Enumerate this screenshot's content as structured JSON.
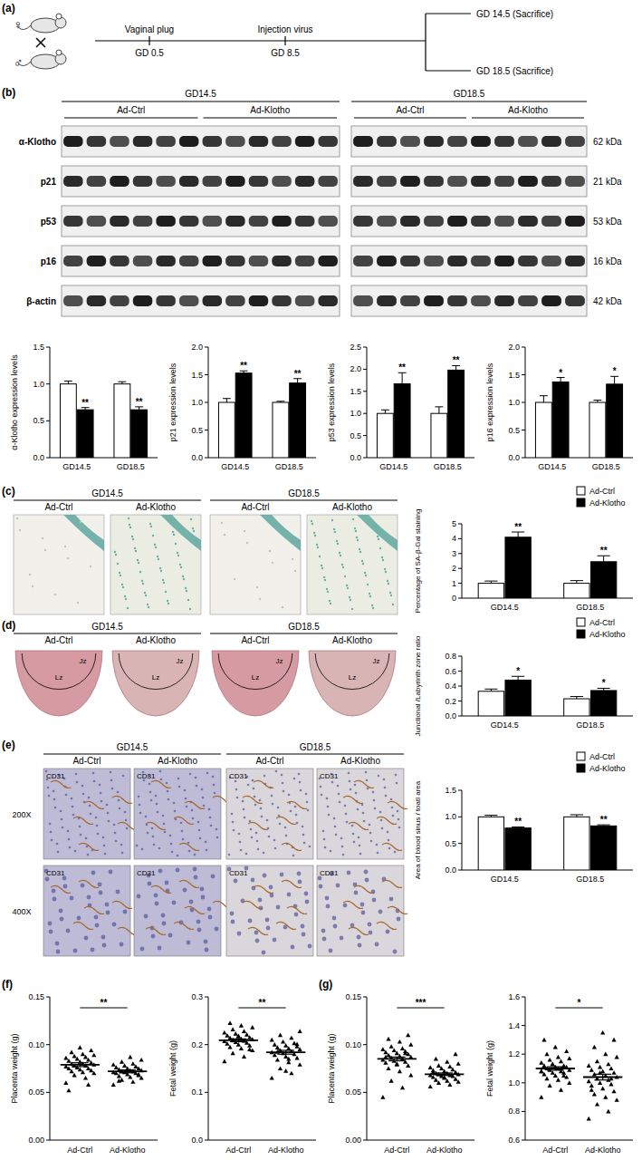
{
  "figure": {
    "panel_labels": [
      "(a)",
      "(b)",
      "(c)",
      "(d)",
      "(e)",
      "(f)",
      "(g)"
    ],
    "time_points": [
      "GD14.5",
      "GD18.5"
    ],
    "groups": [
      "Ad-Ctrl",
      "Ad-Klotho"
    ],
    "schematic": {
      "female": "♀",
      "male": "♂",
      "steps": [
        {
          "event": "Vaginal plug",
          "day": "GD 0.5"
        },
        {
          "event": "Injection virus",
          "day": "GD 8.5"
        }
      ],
      "endpoints": [
        "GD 14.5 (Sacrifice)",
        "GD 18.5 (Sacrifice)"
      ]
    },
    "blot": {
      "lanes_per_group": [
        6,
        5
      ],
      "rows": [
        {
          "protein": "α-Klotho",
          "size": "62 kDa"
        },
        {
          "protein": "p21",
          "size": "21 kDa"
        },
        {
          "protein": "p53",
          "size": "53 kDa"
        },
        {
          "protein": "p16",
          "size": "16 kDa"
        },
        {
          "protein": "β-actin",
          "size": "42 kDa"
        }
      ]
    },
    "zones": [
      "Jz",
      "Lz"
    ],
    "magnifications": [
      "200X",
      "400X"
    ],
    "stain": "CD31"
  },
  "chart_data": [
    {
      "type": "bar",
      "ylabel": "α-Klotho expression levels",
      "categories": [
        "GD14.5",
        "GD18.5"
      ],
      "series": [
        {
          "name": "Ad-Ctrl",
          "color": "#ffffff",
          "values": [
            1.0,
            1.0
          ],
          "errors": [
            0.04,
            0.03
          ]
        },
        {
          "name": "Ad-Klotho",
          "color": "#000000",
          "values": [
            0.65,
            0.65
          ],
          "errors": [
            0.03,
            0.04
          ],
          "significance": [
            "**",
            "**"
          ]
        }
      ],
      "ylim": [
        0,
        1.5
      ],
      "yticks": [
        {
          "value": 0,
          "label": "0.0"
        },
        0.5,
        {
          "value": 1,
          "label": "1.0"
        },
        1.5
      ]
    },
    {
      "type": "bar",
      "ylabel": "p21 expression levels",
      "categories": [
        "GD14.5",
        "GD18.5"
      ],
      "series": [
        {
          "name": "Ad-Ctrl",
          "color": "#ffffff",
          "values": [
            1.0,
            1.0
          ],
          "errors": [
            0.07,
            0.02
          ]
        },
        {
          "name": "Ad-Klotho",
          "color": "#000000",
          "values": [
            1.53,
            1.35
          ],
          "errors": [
            0.04,
            0.08
          ],
          "significance": [
            "**",
            "**"
          ]
        }
      ],
      "ylim": [
        0,
        2
      ],
      "yticks": [
        {
          "value": 0,
          "label": "0.0"
        },
        0.5,
        {
          "value": 1,
          "label": "1.0"
        },
        1.5,
        {
          "value": 2,
          "label": "2.0"
        }
      ]
    },
    {
      "type": "bar",
      "ylabel": "p53 expression levels",
      "categories": [
        "GD14.5",
        "GD18.5"
      ],
      "series": [
        {
          "name": "Ad-Ctrl",
          "color": "#ffffff",
          "values": [
            1.0,
            1.0
          ],
          "errors": [
            0.08,
            0.15
          ]
        },
        {
          "name": "Ad-Klotho",
          "color": "#000000",
          "values": [
            1.67,
            1.98
          ],
          "errors": [
            0.25,
            0.1
          ],
          "significance": [
            "**",
            "**"
          ]
        }
      ],
      "ylim": [
        0,
        2.5
      ],
      "yticks": [
        {
          "value": 0,
          "label": "0.0"
        },
        0.5,
        {
          "value": 1,
          "label": "1.0"
        },
        1.5,
        {
          "value": 2,
          "label": "2.0"
        },
        2.5
      ]
    },
    {
      "type": "bar",
      "ylabel": "p16 expression levels",
      "categories": [
        "GD14.5",
        "GD18.5"
      ],
      "series": [
        {
          "name": "Ad-Ctrl",
          "color": "#ffffff",
          "values": [
            1.0,
            1.0
          ],
          "errors": [
            0.12,
            0.04
          ]
        },
        {
          "name": "Ad-Klotho",
          "color": "#000000",
          "values": [
            1.37,
            1.33
          ],
          "errors": [
            0.08,
            0.14
          ],
          "significance": [
            "*",
            "*"
          ]
        }
      ],
      "ylim": [
        0,
        2
      ],
      "yticks": [
        {
          "value": 0,
          "label": "0.0"
        },
        0.5,
        {
          "value": 1,
          "label": "1.0"
        },
        1.5,
        {
          "value": 2,
          "label": "2.0"
        }
      ]
    },
    {
      "type": "bar",
      "ylabel": "Percentage of SA-β-Gal staining",
      "categories": [
        "GD14.5",
        "GD18.5"
      ],
      "legend": "top-right",
      "series": [
        {
          "name": "Ad-Ctrl",
          "color": "#ffffff",
          "values": [
            1.0,
            1.0
          ],
          "errors": [
            0.15,
            0.18
          ]
        },
        {
          "name": "Ad-Klotho",
          "color": "#000000",
          "values": [
            4.1,
            2.45
          ],
          "errors": [
            0.35,
            0.4
          ],
          "significance": [
            "**",
            "**"
          ]
        }
      ],
      "ylim": [
        0,
        5
      ],
      "yticks": [
        0,
        1,
        2,
        3,
        4,
        5
      ]
    },
    {
      "type": "bar",
      "ylabel": "Junctional /Labyrinth zone ratio",
      "categories": [
        "GD14.5",
        "GD18.5"
      ],
      "legend": "top-right",
      "series": [
        {
          "name": "Ad-Ctrl",
          "color": "#ffffff",
          "values": [
            0.33,
            0.23
          ],
          "errors": [
            0.03,
            0.03
          ]
        },
        {
          "name": "Ad-Klotho",
          "color": "#000000",
          "values": [
            0.48,
            0.34
          ],
          "errors": [
            0.05,
            0.03
          ],
          "significance": [
            "*",
            "*"
          ]
        }
      ],
      "ylim": [
        0,
        0.8
      ],
      "yticks": [
        {
          "value": 0,
          "label": "0.0"
        },
        0.2,
        0.4,
        0.6,
        0.8
      ]
    },
    {
      "type": "bar",
      "ylabel": "Area of blood sinus / toatl area",
      "categories": [
        "GD14.5",
        "GD18.5"
      ],
      "legend": "top-right",
      "series": [
        {
          "name": "Ad-Ctrl",
          "color": "#ffffff",
          "values": [
            1.0,
            1.0
          ],
          "errors": [
            0.03,
            0.04
          ]
        },
        {
          "name": "Ad-Klotho",
          "color": "#000000",
          "values": [
            0.79,
            0.83
          ],
          "errors": [
            0.02,
            0.02
          ],
          "significance": [
            "**",
            "**"
          ]
        }
      ],
      "ylim": [
        0,
        1.5
      ],
      "yticks": [
        {
          "value": 0,
          "label": "0.0"
        },
        0.5,
        {
          "value": 1,
          "label": "1.0"
        },
        1.5
      ]
    },
    {
      "type": "scatter",
      "marker": "triangle",
      "ylabel": "Placenta weight (g)",
      "categories": [
        "Ad-Ctrl",
        "Ad-Klotho"
      ],
      "significance": "**",
      "groups": [
        {
          "values": [
            0.06,
            0.065,
            0.068,
            0.07,
            0.071,
            0.072,
            0.073,
            0.074,
            0.075,
            0.075,
            0.076,
            0.077,
            0.078,
            0.078,
            0.079,
            0.08,
            0.08,
            0.081,
            0.082,
            0.083,
            0.084,
            0.085,
            0.086,
            0.087,
            0.088,
            0.089,
            0.09,
            0.092,
            0.094,
            0.097,
            0.052,
            0.058
          ],
          "mean": 0.079,
          "error": 0.002
        },
        {
          "values": [
            0.058,
            0.061,
            0.063,
            0.065,
            0.066,
            0.067,
            0.068,
            0.069,
            0.07,
            0.07,
            0.071,
            0.071,
            0.072,
            0.072,
            0.073,
            0.073,
            0.074,
            0.075,
            0.075,
            0.076,
            0.077,
            0.078,
            0.079,
            0.08,
            0.082,
            0.084,
            0.087,
            0.062,
            0.069,
            0.074
          ],
          "mean": 0.072,
          "error": 0.0015
        }
      ],
      "ylim": [
        0,
        0.15
      ],
      "yticks": [
        {
          "value": 0,
          "label": "0.00"
        },
        0.05,
        {
          "value": 0.1,
          "label": "0.10"
        },
        0.15
      ]
    },
    {
      "type": "scatter",
      "marker": "triangle",
      "ylabel": "Fetal weight (g)",
      "categories": [
        "Ad-Ctrl",
        "Ad-Klotho"
      ],
      "significance": "**",
      "groups": [
        {
          "values": [
            0.165,
            0.175,
            0.182,
            0.188,
            0.192,
            0.195,
            0.198,
            0.2,
            0.202,
            0.204,
            0.205,
            0.207,
            0.208,
            0.21,
            0.211,
            0.212,
            0.214,
            0.215,
            0.217,
            0.219,
            0.221,
            0.223,
            0.225,
            0.228,
            0.232,
            0.236,
            0.24,
            0.245,
            0.19,
            0.218
          ],
          "mean": 0.209,
          "error": 0.003
        },
        {
          "values": [
            0.13,
            0.14,
            0.15,
            0.158,
            0.163,
            0.168,
            0.172,
            0.175,
            0.178,
            0.18,
            0.182,
            0.184,
            0.186,
            0.188,
            0.19,
            0.192,
            0.194,
            0.196,
            0.198,
            0.2,
            0.203,
            0.206,
            0.21,
            0.214,
            0.22,
            0.228,
            0.17,
            0.185,
            0.201,
            0.145
          ],
          "mean": 0.184,
          "error": 0.004
        }
      ],
      "ylim": [
        0,
        0.3
      ],
      "yticks": [
        {
          "value": 0,
          "label": "0.0"
        },
        0.1,
        0.2,
        0.3
      ]
    },
    {
      "type": "scatter",
      "marker": "triangle",
      "ylabel": "Placenta weight (g)",
      "categories": [
        "Ad-Ctrl",
        "Ad-Klotho"
      ],
      "significance": "***",
      "groups": [
        {
          "values": [
            0.045,
            0.055,
            0.062,
            0.068,
            0.072,
            0.075,
            0.078,
            0.08,
            0.081,
            0.082,
            0.083,
            0.084,
            0.085,
            0.086,
            0.087,
            0.088,
            0.089,
            0.09,
            0.091,
            0.092,
            0.093,
            0.094,
            0.095,
            0.096,
            0.098,
            0.1,
            0.103,
            0.106,
            0.11,
            0.079,
            0.087,
            0.091
          ],
          "mean": 0.085,
          "error": 0.002
        },
        {
          "values": [
            0.056,
            0.058,
            0.06,
            0.061,
            0.062,
            0.063,
            0.064,
            0.065,
            0.066,
            0.067,
            0.067,
            0.068,
            0.068,
            0.069,
            0.069,
            0.07,
            0.07,
            0.071,
            0.072,
            0.073,
            0.074,
            0.075,
            0.076,
            0.077,
            0.078,
            0.08,
            0.082,
            0.085,
            0.09,
            0.066,
            0.071
          ],
          "mean": 0.069,
          "error": 0.0013
        }
      ],
      "ylim": [
        0,
        0.15
      ],
      "yticks": [
        {
          "value": 0,
          "label": "0.00"
        },
        0.05,
        {
          "value": 0.1,
          "label": "0.10"
        },
        0.15
      ]
    },
    {
      "type": "scatter",
      "marker": "triangle",
      "ylabel": "Fetal weight (g)",
      "categories": [
        "Ad-Ctrl",
        "Ad-Klotho"
      ],
      "significance": "*",
      "groups": [
        {
          "values": [
            0.9,
            0.95,
            0.98,
            1.0,
            1.02,
            1.03,
            1.04,
            1.05,
            1.06,
            1.07,
            1.07,
            1.08,
            1.08,
            1.09,
            1.09,
            1.1,
            1.1,
            1.11,
            1.11,
            1.12,
            1.12,
            1.13,
            1.14,
            1.15,
            1.16,
            1.17,
            1.18,
            1.2,
            1.22,
            1.25,
            1.3,
            1.05,
            1.13,
            1.08,
            1.1
          ],
          "mean": 1.1,
          "error": 0.012
        },
        {
          "values": [
            0.75,
            0.8,
            0.85,
            0.88,
            0.9,
            0.92,
            0.94,
            0.96,
            0.98,
            0.99,
            1.0,
            1.01,
            1.02,
            1.03,
            1.04,
            1.05,
            1.06,
            1.07,
            1.08,
            1.09,
            1.1,
            1.11,
            1.12,
            1.13,
            1.15,
            1.18,
            1.2,
            1.25,
            1.3,
            1.35,
            0.95,
            1.03,
            1.07
          ],
          "mean": 1.04,
          "error": 0.02
        }
      ],
      "ylim": [
        0.6,
        1.6
      ],
      "yticks": [
        0.6,
        0.8,
        {
          "value": 1,
          "label": "1.0"
        },
        1.2,
        1.4,
        1.6
      ]
    }
  ]
}
